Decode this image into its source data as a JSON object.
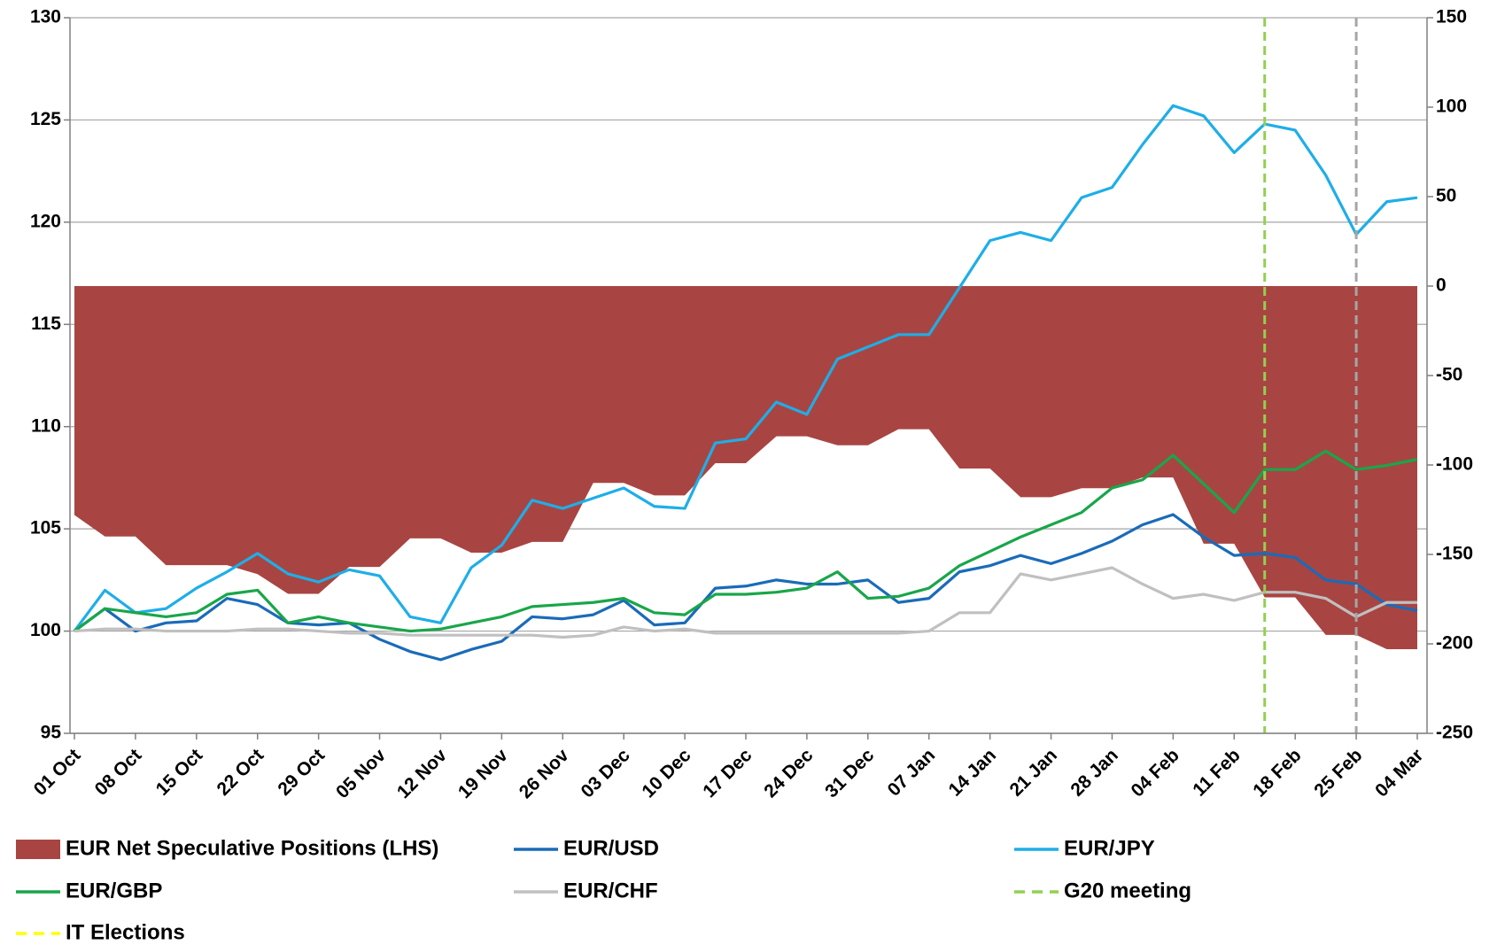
{
  "chart_data": {
    "type": "line",
    "categories": [
      "01 Oct",
      null,
      "08 Oct",
      null,
      "15 Oct",
      null,
      "22 Oct",
      null,
      "29 Oct",
      null,
      "05 Nov",
      null,
      "12 Nov",
      null,
      "19 Nov",
      null,
      "26 Nov",
      null,
      "03 Dec",
      null,
      "10 Dec",
      null,
      "17 Dec",
      null,
      "24 Dec",
      null,
      "31 Dec",
      null,
      "07 Jan",
      null,
      "14 Jan",
      null,
      "21 Jan",
      null,
      "28 Jan",
      null,
      "04 Feb",
      null,
      "11 Feb",
      null,
      "18 Feb",
      null,
      "25 Feb",
      null,
      "04 Mar"
    ],
    "ylim": [
      95,
      130
    ],
    "yticks": [
      95,
      100,
      105,
      110,
      115,
      120,
      125,
      130
    ],
    "y2lim": [
      -250,
      150
    ],
    "y2ticks": [
      -250,
      -200,
      -150,
      -100,
      -50,
      0,
      50,
      100,
      150
    ],
    "grid": true,
    "series": [
      {
        "name": "EUR Net Speculative Positions (LHS)",
        "type": "area",
        "axis": "y2",
        "color": "#a84542",
        "values": [
          -128,
          -140,
          -140,
          -156,
          -156,
          -156,
          -161,
          -172,
          -172,
          -157,
          -157,
          -141,
          -141,
          -149,
          -149,
          -143,
          -143,
          -110,
          -110,
          -117,
          -117,
          -99,
          -99,
          -84,
          -84,
          -89,
          -89,
          -80,
          -80,
          -102,
          -102,
          -118,
          -118,
          -113,
          -113,
          -107,
          -107,
          -144,
          -144,
          -174,
          -174,
          -195,
          -195,
          -203,
          -203
        ]
      },
      {
        "name": "EUR/USD",
        "color": "#1a6bb8",
        "values": [
          100,
          101.1,
          100.0,
          100.4,
          100.5,
          101.6,
          101.3,
          100.4,
          100.3,
          100.4,
          99.6,
          99.0,
          98.6,
          99.1,
          99.5,
          100.7,
          100.6,
          100.8,
          101.5,
          100.3,
          100.4,
          102.1,
          102.2,
          102.5,
          102.3,
          102.3,
          102.5,
          101.4,
          101.6,
          102.9,
          103.2,
          103.7,
          103.3,
          103.8,
          104.4,
          105.2,
          105.7,
          104.6,
          103.7,
          103.8,
          103.6,
          102.5,
          102.3,
          101.3,
          101.0
        ]
      },
      {
        "name": "EUR/JPY",
        "color": "#1eaee8",
        "values": [
          100,
          102.0,
          100.9,
          101.1,
          102.1,
          102.9,
          103.8,
          102.8,
          102.4,
          103.0,
          102.7,
          100.7,
          100.4,
          103.1,
          104.2,
          106.4,
          106.0,
          106.5,
          107.0,
          106.1,
          106.0,
          109.2,
          109.4,
          111.2,
          110.6,
          113.3,
          113.9,
          114.5,
          114.5,
          116.8,
          119.1,
          119.5,
          119.1,
          121.2,
          121.7,
          123.8,
          125.7,
          125.2,
          123.4,
          124.8,
          124.5,
          122.3,
          119.4,
          121.0,
          121.2
        ]
      },
      {
        "name": "EUR/GBP",
        "color": "#19a64a",
        "values": [
          100,
          101.1,
          100.9,
          100.7,
          100.9,
          101.8,
          102.0,
          100.4,
          100.7,
          100.4,
          100.2,
          100.0,
          100.1,
          100.4,
          100.7,
          101.2,
          101.3,
          101.4,
          101.6,
          100.9,
          100.8,
          101.8,
          101.8,
          101.9,
          102.1,
          102.9,
          101.6,
          101.7,
          102.1,
          103.2,
          103.9,
          104.6,
          105.2,
          105.8,
          107.0,
          107.4,
          108.6,
          107.2,
          105.8,
          107.9,
          107.9,
          108.8,
          107.9,
          108.1,
          108.4
        ]
      },
      {
        "name": "EUR/CHF",
        "color": "#c0c0c0",
        "values": [
          100,
          100.1,
          100.1,
          100,
          100,
          100,
          100.1,
          100.1,
          100,
          99.9,
          99.9,
          99.8,
          99.8,
          99.8,
          99.8,
          99.8,
          99.7,
          99.8,
          100.2,
          100,
          100.1,
          99.9,
          99.9,
          99.9,
          99.9,
          99.9,
          99.9,
          99.9,
          100,
          100.9,
          100.9,
          102.8,
          102.5,
          102.8,
          103.1,
          102.3,
          101.6,
          101.8,
          101.5,
          101.9,
          101.9,
          101.6,
          100.7,
          101.4,
          101.4
        ]
      }
    ],
    "events": [
      {
        "name": "G20 meeting",
        "index": 39,
        "color": "#92d050"
      },
      {
        "name": "IT Elections",
        "index": 42,
        "color": "#a6a6a6",
        "legend_color": "#ffff00"
      }
    ]
  }
}
